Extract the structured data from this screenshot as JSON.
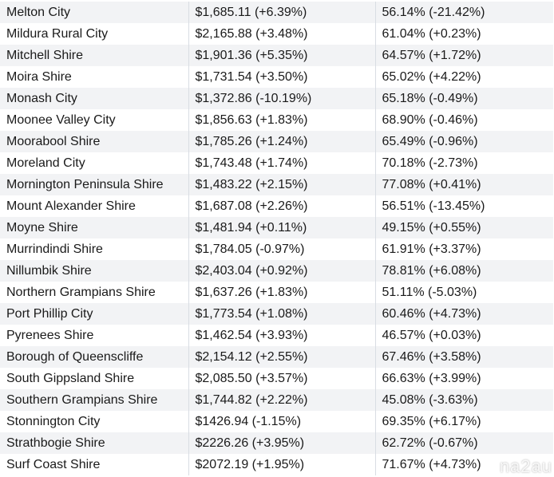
{
  "rows": [
    {
      "council": "Melton City",
      "value": "$1,685.11 (+6.39%)",
      "pct": "56.14% (-21.42%)"
    },
    {
      "council": "Mildura Rural City",
      "value": "$2,165.88 (+3.48%)",
      "pct": "61.04% (+0.23%)"
    },
    {
      "council": "Mitchell Shire",
      "value": "$1,901.36 (+5.35%)",
      "pct": "64.57% (+1.72%)"
    },
    {
      "council": "Moira Shire",
      "value": "$1,731.54 (+3.50%)",
      "pct": "65.02% (+4.22%)"
    },
    {
      "council": "Monash City",
      "value": "$1,372.86 (-10.19%)",
      "pct": "65.18% (-0.49%)"
    },
    {
      "council": "Moonee Valley City",
      "value": "$1,856.63 (+1.83%)",
      "pct": "68.90% (-0.46%)"
    },
    {
      "council": "Moorabool Shire",
      "value": "$1,785.26 (+1.24%)",
      "pct": "65.49% (-0.96%)"
    },
    {
      "council": "Moreland City",
      "value": "$1,743.48 (+1.74%)",
      "pct": "70.18% (-2.73%)"
    },
    {
      "council": "Mornington Peninsula Shire",
      "value": "$1,483.22 (+2.15%)",
      "pct": "77.08% (+0.41%)"
    },
    {
      "council": "Mount Alexander Shire",
      "value": "$1,687.08 (+2.26%)",
      "pct": "56.51% (-13.45%)"
    },
    {
      "council": "Moyne Shire",
      "value": "$1,481.94 (+0.11%)",
      "pct": "49.15% (+0.55%)"
    },
    {
      "council": "Murrindindi Shire",
      "value": "$1,784.05 (-0.97%)",
      "pct": "61.91% (+3.37%)"
    },
    {
      "council": "Nillumbik Shire",
      "value": "$2,403.04 (+0.92%)",
      "pct": "78.81% (+6.08%)"
    },
    {
      "council": "Northern Grampians Shire",
      "value": "$1,637.26 (+1.83%)",
      "pct": "51.11% (-5.03%)"
    },
    {
      "council": "Port Phillip City",
      "value": "$1,773.54 (+1.08%)",
      "pct": "60.46% (+4.73%)"
    },
    {
      "council": "Pyrenees Shire",
      "value": "$1,462.54 (+3.93%)",
      "pct": "46.57% (+0.03%)"
    },
    {
      "council": "Borough of Queenscliffe",
      "value": "$2,154.12 (+2.55%)",
      "pct": "67.46% (+3.58%)"
    },
    {
      "council": "South Gippsland Shire",
      "value": "$2,085.50 (+3.57%)",
      "pct": "66.63% (+3.99%)"
    },
    {
      "council": "Southern Grampians Shire",
      "value": "$1,744.82 (+2.22%)",
      "pct": "45.08% (-3.63%)"
    },
    {
      "council": "Stonnington City",
      "value": "$1426.94 (-1.15%)",
      "pct": "69.35% (+6.17%)"
    },
    {
      "council": "Strathbogie Shire",
      "value": "$2226.26 (+3.95%)",
      "pct": "62.72% (-0.67%)"
    },
    {
      "council": "Surf Coast Shire",
      "value": "$2072.19 (+1.95%)",
      "pct": "71.67% (+4.73%)"
    }
  ],
  "watermark": {
    "text": "na2au"
  }
}
